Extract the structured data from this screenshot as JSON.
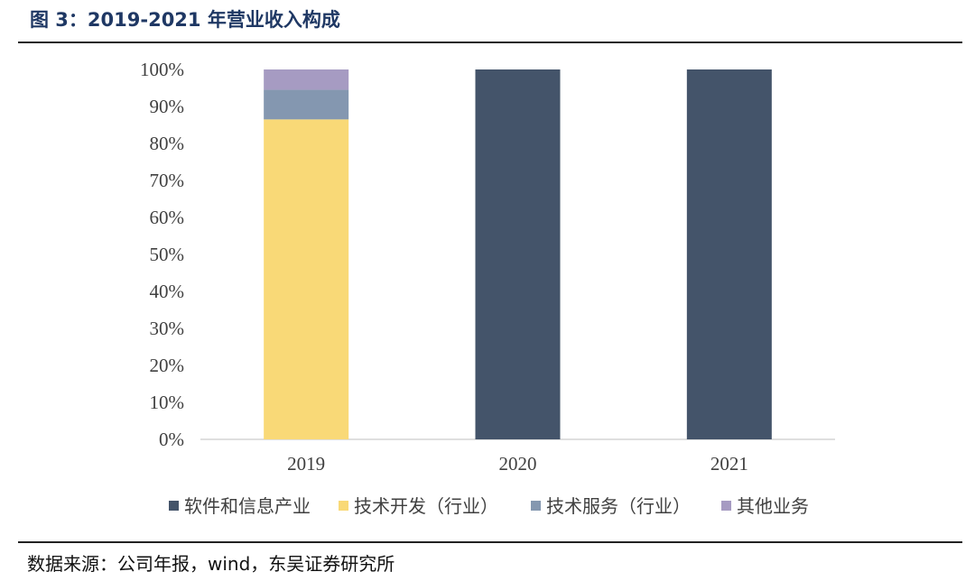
{
  "header": {
    "title": "图 3：2019-2021 年营业收入构成"
  },
  "footer": {
    "source": "数据来源：公司年报，wind，东吴证券研究所"
  },
  "chart_data": {
    "type": "bar",
    "stacked": true,
    "title": "",
    "xlabel": "",
    "ylabel": "",
    "categories": [
      "2019",
      "2020",
      "2021"
    ],
    "ylim": [
      0,
      100
    ],
    "yticks": [
      0,
      10,
      20,
      30,
      40,
      50,
      60,
      70,
      80,
      90,
      100
    ],
    "ytick_labels": [
      "0%",
      "10%",
      "20%",
      "30%",
      "40%",
      "50%",
      "60%",
      "70%",
      "80%",
      "90%",
      "100%"
    ],
    "grid": false,
    "legend_position": "bottom",
    "series": [
      {
        "name": "软件和信息产业",
        "values": [
          0,
          100,
          100
        ],
        "color": "#44546a"
      },
      {
        "name": "技术开发（行业）",
        "values": [
          86.5,
          0,
          0
        ],
        "color": "#f9d977"
      },
      {
        "name": "技术服务（行业）",
        "values": [
          8,
          0,
          0
        ],
        "color": "#8497b0"
      },
      {
        "name": "其他业务",
        "values": [
          5.5,
          0,
          0
        ],
        "color": "#a69bc2"
      }
    ]
  }
}
